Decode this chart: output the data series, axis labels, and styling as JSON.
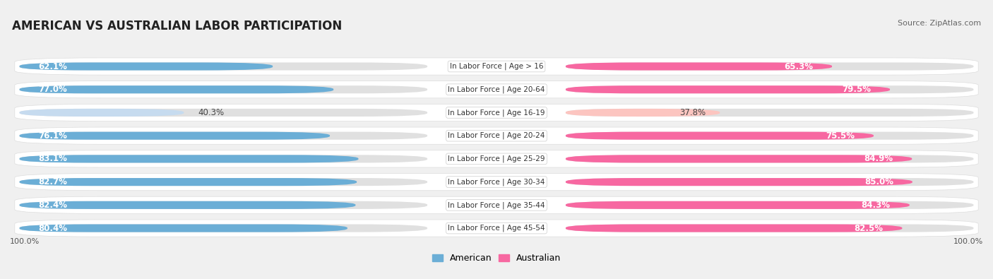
{
  "title": "AMERICAN VS AUSTRALIAN LABOR PARTICIPATION",
  "source": "Source: ZipAtlas.com",
  "categories": [
    "In Labor Force | Age > 16",
    "In Labor Force | Age 20-64",
    "In Labor Force | Age 16-19",
    "In Labor Force | Age 20-24",
    "In Labor Force | Age 25-29",
    "In Labor Force | Age 30-34",
    "In Labor Force | Age 35-44",
    "In Labor Force | Age 45-54"
  ],
  "american_values": [
    62.1,
    77.0,
    40.3,
    76.1,
    83.1,
    82.7,
    82.4,
    80.4
  ],
  "australian_values": [
    65.3,
    79.5,
    37.8,
    75.5,
    84.9,
    85.0,
    84.3,
    82.5
  ],
  "american_color": "#6baed6",
  "australian_color": "#f768a1",
  "american_color_light": "#c6dbef",
  "australian_color_light": "#fcc5c0",
  "bg_color": "#f0f0f0",
  "row_bg_color": "#ffffff",
  "row_border_color": "#dddddd",
  "bar_track_color": "#e0e0e0",
  "legend_american": "American",
  "legend_australian": "Australian",
  "max_value": 100.0,
  "label_fontsize": 8.5,
  "title_fontsize": 12,
  "source_fontsize": 8
}
